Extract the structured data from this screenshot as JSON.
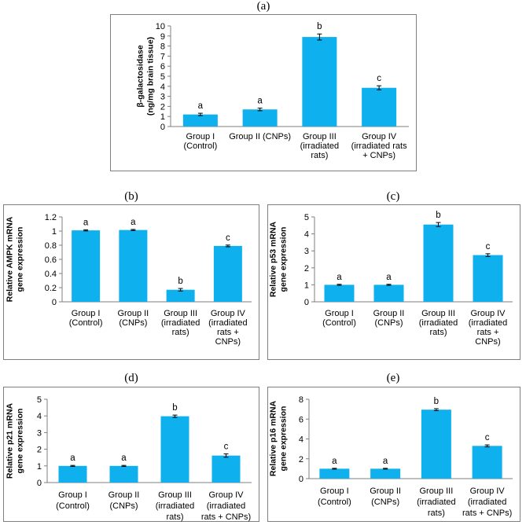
{
  "chart_data": [
    {
      "id": "a",
      "panel_label": "(a)",
      "type": "bar",
      "ylabel_lines": [
        "β-galactosidase",
        "(ng/mg brain tissue)"
      ],
      "ylim": [
        0,
        10
      ],
      "yticks": [
        0,
        1,
        2,
        3,
        4,
        5,
        6,
        7,
        8,
        9,
        10
      ],
      "categories": [
        [
          "Group I",
          "(Control)"
        ],
        [
          "Group II (CNPs)"
        ],
        [
          "Group III",
          "(irradiated",
          "rats)"
        ],
        [
          "Group IV",
          "(irradiated rats",
          "+ CNPs)"
        ]
      ],
      "values": [
        1.2,
        1.7,
        8.9,
        3.85
      ],
      "errors": [
        0.12,
        0.13,
        0.3,
        0.2
      ],
      "letters": [
        "a",
        "a",
        "b",
        "c"
      ],
      "bar_color": "#0fb0ee"
    },
    {
      "id": "b",
      "panel_label": "(b)",
      "type": "bar",
      "ylabel_lines": [
        "Relative AMPK mRNA",
        "gene expression"
      ],
      "ylim": [
        0,
        1.2
      ],
      "yticks": [
        0,
        0.2,
        0.4,
        0.6,
        0.8,
        1,
        1.2
      ],
      "categories": [
        [
          "Group I",
          "(Control)"
        ],
        [
          "Group II",
          "(CNPs)"
        ],
        [
          "Group III",
          "(irradiated",
          "rats)"
        ],
        [
          "Group IV",
          "(irradiated",
          "rats +",
          "CNPs)"
        ]
      ],
      "values": [
        1.01,
        1.015,
        0.17,
        0.79
      ],
      "errors": [
        0.008,
        0.008,
        0.018,
        0.012
      ],
      "letters": [
        "a",
        "a",
        "b",
        "c"
      ],
      "bar_color": "#0fb0ee"
    },
    {
      "id": "c",
      "panel_label": "(c)",
      "type": "bar",
      "ylabel_lines": [
        "Relative p53 mRNA",
        "gene expression"
      ],
      "ylim": [
        0,
        5
      ],
      "yticks": [
        0,
        1,
        2,
        3,
        4,
        5
      ],
      "categories": [
        [
          "Group I",
          "(Control)"
        ],
        [
          "Group II",
          "(CNPs)"
        ],
        [
          "Group III",
          "(irradiated",
          "rats)"
        ],
        [
          "Group IV",
          "(irradiated",
          "rats +",
          "CNPs)"
        ]
      ],
      "values": [
        1.0,
        1.0,
        4.55,
        2.75
      ],
      "errors": [
        0.03,
        0.03,
        0.12,
        0.08
      ],
      "letters": [
        "a",
        "a",
        "b",
        "c"
      ],
      "bar_color": "#0fb0ee"
    },
    {
      "id": "d",
      "panel_label": "(d)",
      "type": "bar",
      "ylabel_lines": [
        "Relative p21 mRNA",
        "gene expression"
      ],
      "ylim": [
        0,
        5
      ],
      "yticks": [
        0,
        1,
        2,
        3,
        4,
        5
      ],
      "categories": [
        [
          "Group I",
          "(Control)"
        ],
        [
          "Group II",
          "(CNPs)"
        ],
        [
          "Group III",
          "(irradiated",
          "rats)"
        ],
        [
          "Group IV",
          "(irradiated",
          "rats + CNPs)"
        ]
      ],
      "values": [
        1.0,
        1.0,
        3.98,
        1.62
      ],
      "errors": [
        0.03,
        0.03,
        0.07,
        0.1
      ],
      "letters": [
        "a",
        "a",
        "b",
        "c"
      ],
      "bar_color": "#0fb0ee"
    },
    {
      "id": "e",
      "panel_label": "(e)",
      "type": "bar",
      "ylabel_lines": [
        "Relative p16 mRNA",
        "gene expression"
      ],
      "ylim": [
        0,
        8
      ],
      "yticks": [
        0,
        2,
        4,
        6,
        8
      ],
      "categories": [
        [
          "Group I",
          "(Control)"
        ],
        [
          "Group II",
          "(CNPs)"
        ],
        [
          "Group III",
          "(irradiated",
          "rats)"
        ],
        [
          "Group IV",
          "(irradiated",
          "rats + CNPs)"
        ]
      ],
      "values": [
        1.0,
        1.0,
        6.95,
        3.3
      ],
      "errors": [
        0.04,
        0.04,
        0.1,
        0.1
      ],
      "letters": [
        "a",
        "a",
        "b",
        "c"
      ],
      "bar_color": "#0fb0ee"
    }
  ]
}
